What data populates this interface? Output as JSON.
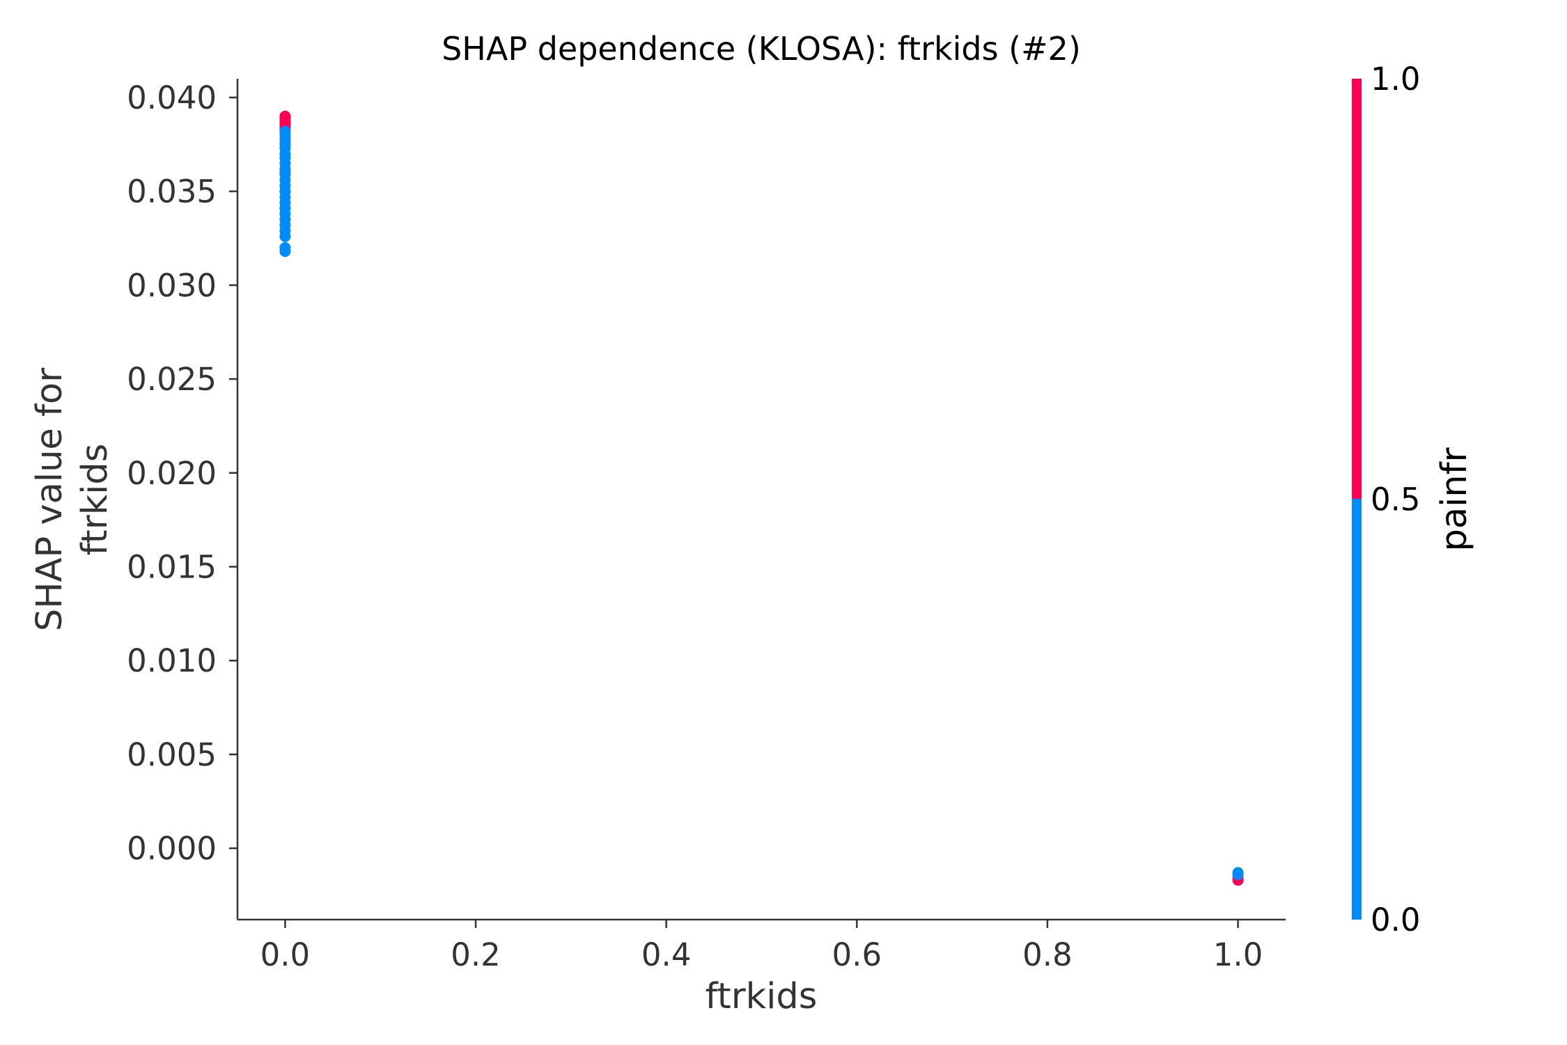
{
  "chart_data": {
    "type": "scatter",
    "title": "SHAP dependence (KLOSA): ftrkids (#2)",
    "xlabel": "ftrkids",
    "ylabel_lines": [
      "SHAP value for",
      "ftrkids"
    ],
    "xlim": [
      -0.05,
      1.05
    ],
    "ylim": [
      -0.0038,
      0.041
    ],
    "xticks": [
      0.0,
      0.2,
      0.4,
      0.6,
      0.8,
      1.0
    ],
    "xtick_labels": [
      "0.0",
      "0.2",
      "0.4",
      "0.6",
      "0.8",
      "1.0"
    ],
    "yticks": [
      0.0,
      0.005,
      0.01,
      0.015,
      0.02,
      0.025,
      0.03,
      0.035,
      0.04
    ],
    "ytick_labels": [
      "0.000",
      "0.005",
      "0.010",
      "0.015",
      "0.020",
      "0.025",
      "0.030",
      "0.035",
      "0.040"
    ],
    "grid": false,
    "color_feature": "painfr",
    "colorbar": {
      "label": "painfr",
      "ticks": [
        0.0,
        0.5,
        1.0
      ],
      "tick_labels": [
        "0.0",
        "0.5",
        "1.0"
      ],
      "colors": {
        "low": "#008bfb",
        "high": "#ff0052"
      }
    },
    "series": [
      {
        "color": "#ff0052",
        "points": [
          {
            "x": 0,
            "y": 0.039
          },
          {
            "x": 0,
            "y": 0.0389
          },
          {
            "x": 0,
            "y": 0.0388
          },
          {
            "x": 0,
            "y": 0.0387
          },
          {
            "x": 0,
            "y": 0.0386
          },
          {
            "x": 0,
            "y": 0.0385
          },
          {
            "x": 0,
            "y": 0.0384
          },
          {
            "x": 0,
            "y": 0.0383
          },
          {
            "x": 0,
            "y": 0.0376
          },
          {
            "x": 0,
            "y": 0.036
          },
          {
            "x": 1,
            "y": -0.0017
          },
          {
            "x": 1,
            "y": -0.0016
          }
        ]
      },
      {
        "color": "#008bfb",
        "points": [
          {
            "x": 0,
            "y": 0.0382
          },
          {
            "x": 0,
            "y": 0.038
          },
          {
            "x": 0,
            "y": 0.0378
          },
          {
            "x": 0,
            "y": 0.0375
          },
          {
            "x": 0,
            "y": 0.0373
          },
          {
            "x": 0,
            "y": 0.037
          },
          {
            "x": 0,
            "y": 0.0368
          },
          {
            "x": 0,
            "y": 0.0365
          },
          {
            "x": 0,
            "y": 0.0362
          },
          {
            "x": 0,
            "y": 0.0359
          },
          {
            "x": 0,
            "y": 0.0356
          },
          {
            "x": 0,
            "y": 0.0353
          },
          {
            "x": 0,
            "y": 0.035
          },
          {
            "x": 0,
            "y": 0.0347
          },
          {
            "x": 0,
            "y": 0.0344
          },
          {
            "x": 0,
            "y": 0.0341
          },
          {
            "x": 0,
            "y": 0.0338
          },
          {
            "x": 0,
            "y": 0.0335
          },
          {
            "x": 0,
            "y": 0.0332
          },
          {
            "x": 0,
            "y": 0.0329
          },
          {
            "x": 0,
            "y": 0.0326
          },
          {
            "x": 0,
            "y": 0.032
          },
          {
            "x": 0,
            "y": 0.0318
          },
          {
            "x": 1,
            "y": -0.0014
          },
          {
            "x": 1,
            "y": -0.0013
          }
        ]
      }
    ]
  }
}
